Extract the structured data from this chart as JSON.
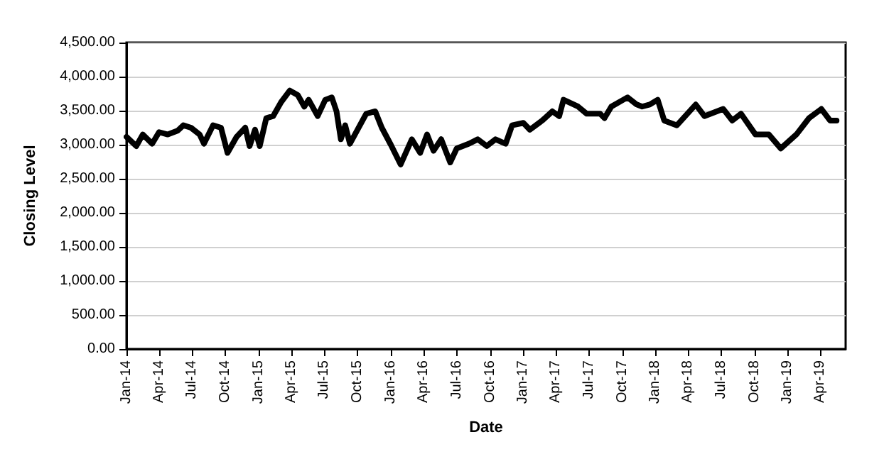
{
  "chart_data": {
    "type": "line",
    "xlabel": "Date",
    "ylabel": "Closing Level",
    "x": [
      "2014-01-01",
      "2014-01-28",
      "2014-02-15",
      "2014-03-13",
      "2014-04-01",
      "2014-04-25",
      "2014-05-22",
      "2014-06-07",
      "2014-06-28",
      "2014-07-22",
      "2014-08-03",
      "2014-08-28",
      "2014-09-19",
      "2014-10-07",
      "2014-11-01",
      "2014-11-25",
      "2014-12-07",
      "2014-12-22",
      "2015-01-04",
      "2015-01-22",
      "2015-02-10",
      "2015-03-04",
      "2015-03-28",
      "2015-04-19",
      "2015-05-07",
      "2015-05-19",
      "2015-06-13",
      "2015-07-04",
      "2015-07-22",
      "2015-08-04",
      "2015-08-16",
      "2015-08-28",
      "2015-09-10",
      "2015-10-01",
      "2015-10-25",
      "2015-11-19",
      "2015-12-07",
      "2016-01-01",
      "2016-01-28",
      "2016-02-28",
      "2016-03-22",
      "2016-04-10",
      "2016-04-28",
      "2016-05-19",
      "2016-06-13",
      "2016-07-01",
      "2016-08-04",
      "2016-08-28",
      "2016-09-22",
      "2016-10-16",
      "2016-11-13",
      "2016-12-01",
      "2017-01-01",
      "2017-01-19",
      "2017-02-22",
      "2017-03-22",
      "2017-04-10",
      "2017-04-22",
      "2017-06-01",
      "2017-06-25",
      "2017-08-01",
      "2017-08-13",
      "2017-09-01",
      "2017-10-04",
      "2017-10-16",
      "2017-11-10",
      "2017-11-25",
      "2017-12-16",
      "2018-01-07",
      "2018-01-25",
      "2018-03-01",
      "2018-04-22",
      "2018-05-16",
      "2018-07-07",
      "2018-08-01",
      "2018-08-25",
      "2018-10-04",
      "2018-11-10",
      "2018-12-13",
      "2019-01-25",
      "2019-03-01",
      "2019-04-04",
      "2019-04-28",
      "2019-05-16"
    ],
    "series": [
      {
        "color": "#000000",
        "values": [
          3115,
          2980,
          3150,
          3015,
          3185,
          3150,
          3205,
          3285,
          3250,
          3150,
          3015,
          3285,
          3250,
          2880,
          3115,
          3250,
          2980,
          3220,
          2980,
          3390,
          3420,
          3625,
          3795,
          3730,
          3560,
          3660,
          3420,
          3660,
          3695,
          3490,
          3080,
          3285,
          3015,
          3220,
          3455,
          3490,
          3250,
          3000,
          2710,
          3080,
          2880,
          3150,
          2910,
          3080,
          2740,
          2945,
          3015,
          3080,
          2980,
          3080,
          3015,
          3285,
          3320,
          3220,
          3355,
          3490,
          3420,
          3660,
          3560,
          3455,
          3455,
          3390,
          3560,
          3660,
          3695,
          3590,
          3560,
          3590,
          3660,
          3355,
          3285,
          3590,
          3420,
          3525,
          3355,
          3455,
          3150,
          3150,
          2945,
          3150,
          3390,
          3525,
          3355,
          3355
        ]
      }
    ],
    "xlim": [
      "2014-01-01",
      "2019-06-10"
    ],
    "xticks": [
      {
        "value": "2014-01-01",
        "label": "Jan-14"
      },
      {
        "value": "2014-04-01",
        "label": "Apr-14"
      },
      {
        "value": "2014-07-01",
        "label": "Jul-14"
      },
      {
        "value": "2014-10-01",
        "label": "Oct-14"
      },
      {
        "value": "2015-01-01",
        "label": "Jan-15"
      },
      {
        "value": "2015-04-01",
        "label": "Apr-15"
      },
      {
        "value": "2015-07-01",
        "label": "Jul-15"
      },
      {
        "value": "2015-10-01",
        "label": "Oct-15"
      },
      {
        "value": "2016-01-01",
        "label": "Jan-16"
      },
      {
        "value": "2016-04-01",
        "label": "Apr-16"
      },
      {
        "value": "2016-07-01",
        "label": "Jul-16"
      },
      {
        "value": "2016-10-01",
        "label": "Oct-16"
      },
      {
        "value": "2017-01-01",
        "label": "Jan-17"
      },
      {
        "value": "2017-04-01",
        "label": "Apr-17"
      },
      {
        "value": "2017-07-01",
        "label": "Jul-17"
      },
      {
        "value": "2017-10-01",
        "label": "Oct-17"
      },
      {
        "value": "2018-01-01",
        "label": "Jan-18"
      },
      {
        "value": "2018-04-01",
        "label": "Apr-18"
      },
      {
        "value": "2018-07-01",
        "label": "Jul-18"
      },
      {
        "value": "2018-10-01",
        "label": "Oct-18"
      },
      {
        "value": "2019-01-01",
        "label": "Jan-19"
      },
      {
        "value": "2019-04-01",
        "label": "Apr-19"
      }
    ],
    "ylim": [
      0,
      4500
    ],
    "yticks": [
      {
        "value": 0,
        "label": "0.00"
      },
      {
        "value": 500,
        "label": "500.00"
      },
      {
        "value": 1000,
        "label": "1,000.00"
      },
      {
        "value": 1500,
        "label": "1,500.00"
      },
      {
        "value": 2000,
        "label": "2,000.00"
      },
      {
        "value": 2500,
        "label": "2,500.00"
      },
      {
        "value": 3000,
        "label": "3,000.00"
      },
      {
        "value": 3500,
        "label": "3,500.00"
      },
      {
        "value": 4000,
        "label": "4,000.00"
      },
      {
        "value": 4500,
        "label": "4,500.00"
      }
    ],
    "grid": "y",
    "marker": "none",
    "line_style": "solid"
  }
}
